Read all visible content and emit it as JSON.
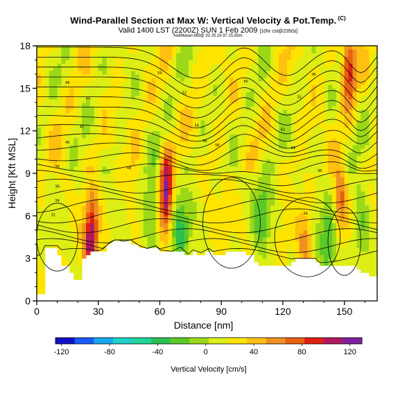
{
  "header": {
    "title": "Wind-Parallel Section at Max W: Vertical Velocity & Pot.Temp.",
    "title_sup": "(C)",
    "subtitle_main": "Valid 1400 LST (2200Z) SUN 1 Feb 2009",
    "subtitle_small": "[10hr cst@2350z]",
    "tiny_note": "hodMaxa=169@ 33 25.19 97 25.85m"
  },
  "chart_data": {
    "type": "heatmap",
    "xlabel": "Distance [nm]",
    "ylabel": "Height [Kft MSL]",
    "xlim": [
      0,
      166
    ],
    "ylim": [
      0,
      18
    ],
    "xticks": [
      0,
      30,
      60,
      90,
      120,
      150
    ],
    "yticks": [
      0,
      3,
      6,
      9,
      12,
      15,
      18
    ],
    "colorbar": {
      "label": "Vertical Velocity [cm/s]",
      "min": -125,
      "max": 130,
      "ticks": [
        -120,
        -80,
        -40,
        0,
        40,
        80,
        120
      ],
      "colors": [
        "#1010c8",
        "#1a5cff",
        "#18a8f0",
        "#1ed0c8",
        "#20d49a",
        "#2cc050",
        "#5cc828",
        "#9cd818",
        "#dcee14",
        "#ffe400",
        "#ffc010",
        "#f09020",
        "#e86010",
        "#e02010",
        "#b01860",
        "#8020a0"
      ]
    },
    "terrain": [
      [
        0,
        0.4
      ],
      [
        3,
        0.4
      ],
      [
        4,
        3.8
      ],
      [
        10,
        3.8
      ],
      [
        12,
        2.6
      ],
      [
        16,
        2.6
      ],
      [
        18,
        1.4
      ],
      [
        22,
        1.4
      ],
      [
        23,
        3.1
      ],
      [
        28,
        3.5
      ],
      [
        30,
        3.4
      ],
      [
        33,
        3.6
      ],
      [
        35,
        4.0
      ],
      [
        38,
        4.2
      ],
      [
        42,
        4.2
      ],
      [
        46,
        4.2
      ],
      [
        50,
        3.8
      ],
      [
        54,
        3.6
      ],
      [
        58,
        3.8
      ],
      [
        60,
        3.5
      ],
      [
        66,
        3.4
      ],
      [
        70,
        3.7
      ],
      [
        74,
        3.2
      ],
      [
        76,
        3.5
      ],
      [
        80,
        3.3
      ],
      [
        84,
        3.6
      ],
      [
        88,
        3.2
      ],
      [
        92,
        3.4
      ],
      [
        98,
        3.6
      ],
      [
        102,
        3.4
      ],
      [
        106,
        3.1
      ],
      [
        108,
        2.6
      ],
      [
        120,
        2.6
      ],
      [
        124,
        2.6
      ],
      [
        126,
        2.9
      ],
      [
        136,
        2.9
      ],
      [
        140,
        2.5
      ],
      [
        144,
        2.5
      ],
      [
        146,
        2.6
      ],
      [
        152,
        2.6
      ],
      [
        156,
        2.4
      ],
      [
        160,
        2.0
      ],
      [
        164,
        1.7
      ],
      [
        166,
        1.9
      ]
    ],
    "updrafts": [
      {
        "x": 63,
        "z": 7.8,
        "peak": 128
      },
      {
        "x": 27,
        "z": 5.2,
        "peak": 65
      },
      {
        "x": 26,
        "z": 3.6,
        "peak": 75
      },
      {
        "x": 148,
        "z": 7.0,
        "peak": 70
      },
      {
        "x": 152,
        "z": 16.5,
        "peak": 95
      },
      {
        "x": 131,
        "z": 3.9,
        "peak": 55
      },
      {
        "x": 47,
        "z": 7.5,
        "peak": 28
      }
    ],
    "downdrafts": [
      {
        "x": 70,
        "z": 5.0,
        "peak": -30
      },
      {
        "x": 110,
        "z": 6.5,
        "peak": -22
      },
      {
        "x": 142,
        "z": 4.0,
        "peak": -25
      },
      {
        "x": 158,
        "z": 5.5,
        "peak": -22
      },
      {
        "x": 56,
        "z": 6.5,
        "peak": -22
      }
    ],
    "isentrope_labels": [
      "32",
      "34",
      "36",
      "38",
      "40",
      "42",
      "44",
      "46",
      "48",
      "50",
      "52",
      "54",
      "56",
      "58",
      "60",
      "62",
      "64"
    ]
  }
}
